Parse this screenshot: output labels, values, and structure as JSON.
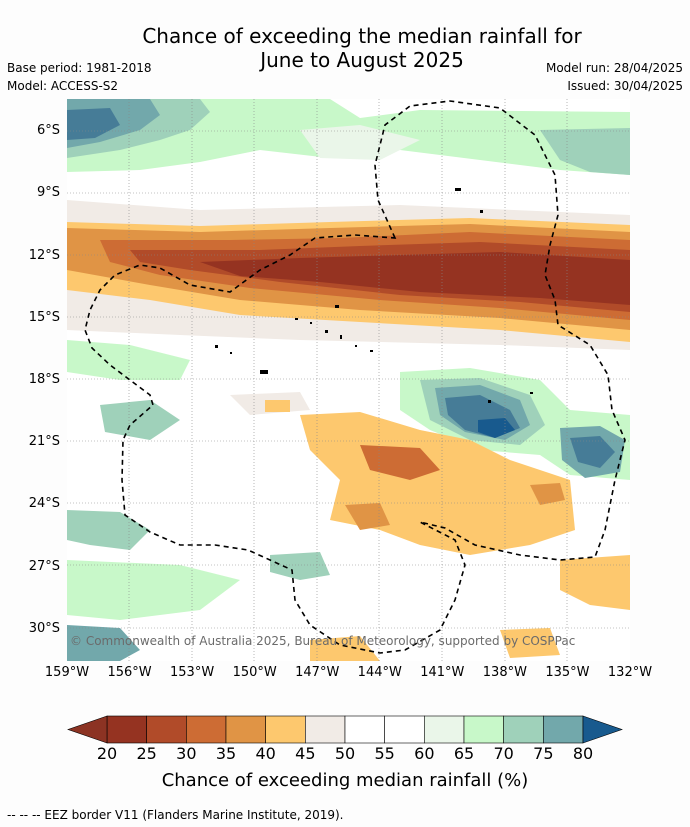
{
  "title_line1": "Chance of exceeding the median rainfall for",
  "title_line2": "June to August 2025",
  "meta": {
    "base_period": "Base period: 1981-2018",
    "model": "Model: ACCESS-S2",
    "model_run": "Model run: 28/04/2025",
    "issued": "Issued: 30/04/2025"
  },
  "map": {
    "lat_labels": [
      "6°S",
      "9°S",
      "12°S",
      "15°S",
      "18°S",
      "21°S",
      "24°S",
      "27°S",
      "30°S"
    ],
    "lon_labels": [
      "159°W",
      "156°W",
      "153°W",
      "150°W",
      "147°W",
      "144°W",
      "141°W",
      "138°W",
      "135°W",
      "132°W"
    ],
    "lat_values": [
      -6,
      -9,
      -12,
      -15,
      -18,
      -21,
      -24,
      -27,
      -30
    ],
    "lon_values": [
      -159,
      -156,
      -153,
      -150,
      -147,
      -144,
      -141,
      -138,
      -135,
      -132
    ],
    "extent": {
      "lon_min": -159,
      "lon_max": -132,
      "lat_min": -31.5,
      "lat_max": -4.4
    },
    "copyright": "© Commonwealth of Australia 2025, Bureau of Meteorology, supported by COSPPac",
    "grid": true
  },
  "colorbar": {
    "ticks": [
      "20",
      "25",
      "30",
      "35",
      "40",
      "45",
      "50",
      "55",
      "60",
      "65",
      "70",
      "75",
      "80"
    ],
    "colors": [
      "#953321",
      "#b14b29",
      "#cd6c34",
      "#e09445",
      "#fdc86e",
      "#f1ebe6",
      "#ffffff",
      "#ffffff",
      "#eaf6e9",
      "#c8f8c9",
      "#9fd1ba",
      "#72a8ab",
      "#467c97"
    ],
    "under_color": "#8c3323",
    "over_color": "#185a8e",
    "label": "Chance of exceeding median rainfall (%)"
  },
  "footer": "--  --  -- EEZ border V11 (Flanders Marine Institute, 2019)."
}
